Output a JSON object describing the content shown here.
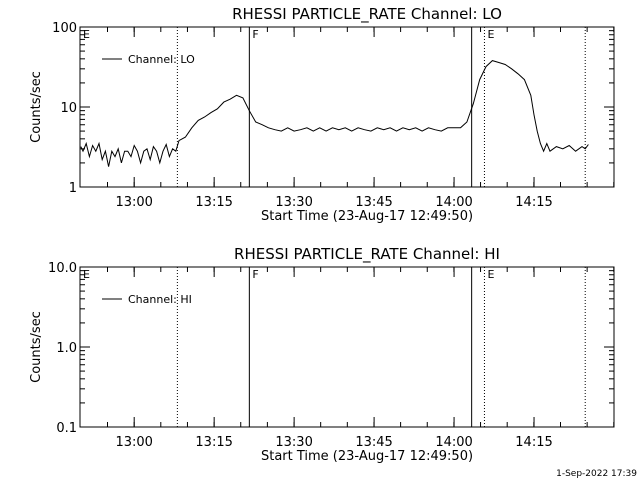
{
  "footer_timestamp": "1-Sep-2022 17:39",
  "chart_data": [
    {
      "type": "line",
      "title": "RHESSI PARTICLE_RATE Channel: LO",
      "xlabel": "Start Time (23-Aug-17 12:49:50)",
      "ylabel": "Counts/sec",
      "yscale": "log",
      "ylim": [
        1,
        100
      ],
      "yticks": [
        1,
        10,
        100
      ],
      "ytick_labels": [
        "1",
        "10",
        "100"
      ],
      "xlim": [
        12.8306,
        14.5
      ],
      "xticks": [
        13.0,
        13.25,
        13.5,
        13.75,
        14.0,
        14.25
      ],
      "xtick_labels": [
        "13:00",
        "13:15",
        "13:30",
        "13:45",
        "14:00",
        "14:15"
      ],
      "legend": {
        "label": "Channel: LO",
        "position": "top-left"
      },
      "markers": [
        {
          "x": 12.8306,
          "style": "dotted",
          "label": "E"
        },
        {
          "x": 13.135,
          "style": "dotted",
          "label": ""
        },
        {
          "x": 13.36,
          "style": "solid",
          "label": "F"
        },
        {
          "x": 14.055,
          "style": "solid",
          "label": ""
        },
        {
          "x": 14.095,
          "style": "dotted",
          "label": "E"
        },
        {
          "x": 14.41,
          "style": "dotted",
          "label": ""
        }
      ],
      "series": [
        {
          "name": "Channel: LO",
          "x": [
            12.833,
            12.84,
            12.85,
            12.86,
            12.87,
            12.88,
            12.89,
            12.9,
            12.91,
            12.92,
            12.93,
            12.94,
            12.95,
            12.96,
            12.97,
            12.98,
            12.99,
            13.0,
            13.01,
            13.02,
            13.03,
            13.04,
            13.05,
            13.06,
            13.07,
            13.08,
            13.09,
            13.1,
            13.11,
            13.12,
            13.13,
            13.14,
            13.16,
            13.18,
            13.2,
            13.22,
            13.24,
            13.26,
            13.28,
            13.3,
            13.32,
            13.34,
            13.36,
            13.38,
            13.4,
            13.42,
            13.44,
            13.46,
            13.48,
            13.5,
            13.52,
            13.54,
            13.56,
            13.58,
            13.6,
            13.62,
            13.64,
            13.66,
            13.68,
            13.7,
            13.72,
            13.74,
            13.76,
            13.78,
            13.8,
            13.82,
            13.84,
            13.86,
            13.88,
            13.9,
            13.92,
            13.94,
            13.96,
            13.98,
            14.0,
            14.02,
            14.04,
            14.06,
            14.08,
            14.1,
            14.12,
            14.14,
            14.16,
            14.18,
            14.2,
            14.22,
            14.24,
            14.25,
            14.26,
            14.27,
            14.28,
            14.29,
            14.3,
            14.32,
            14.34,
            14.36,
            14.38,
            14.4,
            14.41,
            14.42
          ],
          "values": [
            3.2,
            2.8,
            3.5,
            2.4,
            3.3,
            2.8,
            3.5,
            2.2,
            2.8,
            1.8,
            2.8,
            2.4,
            3.0,
            2.0,
            2.8,
            2.8,
            2.4,
            3.3,
            2.8,
            2.0,
            2.8,
            3.0,
            2.2,
            3.2,
            2.8,
            2.0,
            2.8,
            3.4,
            2.4,
            3.0,
            2.8,
            3.8,
            4.2,
            5.5,
            6.8,
            7.5,
            8.5,
            9.5,
            11.5,
            12.5,
            14.0,
            13.0,
            9.0,
            6.5,
            6.0,
            5.5,
            5.2,
            5.0,
            5.5,
            5.0,
            5.2,
            5.5,
            5.0,
            5.5,
            5.0,
            5.5,
            5.2,
            5.5,
            5.0,
            5.5,
            5.2,
            5.0,
            5.5,
            5.2,
            5.5,
            5.0,
            5.5,
            5.2,
            5.5,
            5.0,
            5.5,
            5.2,
            5.0,
            5.5,
            5.5,
            5.5,
            6.5,
            11.0,
            22.0,
            32.0,
            38.0,
            36.0,
            34.0,
            30.0,
            26.0,
            22.0,
            14.0,
            8.0,
            5.0,
            3.5,
            2.8,
            3.5,
            2.8,
            3.2,
            3.0,
            3.3,
            2.8,
            3.2,
            3.0,
            3.4
          ]
        }
      ]
    },
    {
      "type": "line",
      "title": "RHESSI PARTICLE_RATE Channel: HI",
      "xlabel": "Start Time (23-Aug-17 12:49:50)",
      "ylabel": "Counts/sec",
      "yscale": "log",
      "ylim": [
        0.1,
        10.0
      ],
      "yticks": [
        0.1,
        1.0,
        10.0
      ],
      "ytick_labels": [
        "0.1",
        "1.0",
        "10.0"
      ],
      "xlim": [
        12.8306,
        14.5
      ],
      "xticks": [
        13.0,
        13.25,
        13.5,
        13.75,
        14.0,
        14.25
      ],
      "xtick_labels": [
        "13:00",
        "13:15",
        "13:30",
        "13:45",
        "14:00",
        "14:15"
      ],
      "legend": {
        "label": "Channel: HI",
        "position": "top-left"
      },
      "markers": [
        {
          "x": 12.8306,
          "style": "dotted",
          "label": "E"
        },
        {
          "x": 13.135,
          "style": "dotted",
          "label": ""
        },
        {
          "x": 13.36,
          "style": "solid",
          "label": "F"
        },
        {
          "x": 14.055,
          "style": "solid",
          "label": ""
        },
        {
          "x": 14.095,
          "style": "dotted",
          "label": "E"
        },
        {
          "x": 14.41,
          "style": "dotted",
          "label": ""
        }
      ],
      "series": [
        {
          "name": "Channel: HI",
          "x": [],
          "values": []
        }
      ]
    }
  ]
}
